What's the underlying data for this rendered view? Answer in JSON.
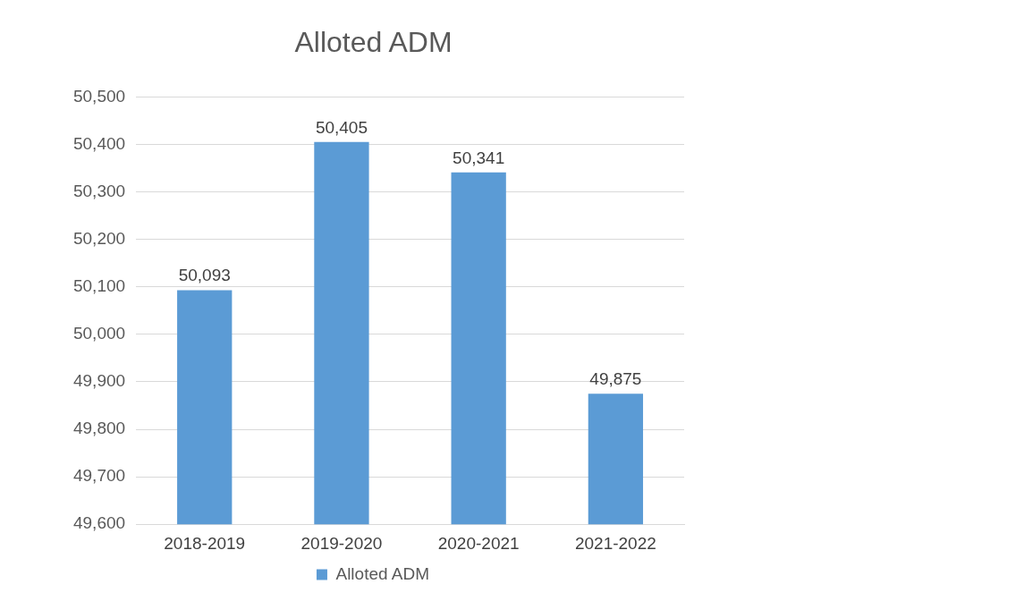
{
  "chart_data": {
    "type": "bar",
    "title": "Alloted ADM",
    "categories": [
      "2018-2019",
      "2019-2020",
      "2020-2021",
      "2021-2022"
    ],
    "series": [
      {
        "name": "Alloted ADM",
        "color": "#5b9bd5",
        "values": [
          50093,
          50405,
          50341,
          49875
        ],
        "value_labels": [
          "50,093",
          "50,405",
          "50,341",
          "49,875"
        ]
      }
    ],
    "ylim": [
      49600,
      50500
    ],
    "yticks": [
      {
        "value": 49600,
        "label": "49,600"
      },
      {
        "value": 49700,
        "label": "49,700"
      },
      {
        "value": 49800,
        "label": "49,800"
      },
      {
        "value": 49900,
        "label": "49,900"
      },
      {
        "value": 50000,
        "label": "50,000"
      },
      {
        "value": 50100,
        "label": "50,100"
      },
      {
        "value": 50200,
        "label": "50,200"
      },
      {
        "value": 50300,
        "label": "50,300"
      },
      {
        "value": 50400,
        "label": "50,400"
      },
      {
        "value": 50500,
        "label": "50,500"
      }
    ],
    "grid": "y",
    "legend": "bottom"
  }
}
